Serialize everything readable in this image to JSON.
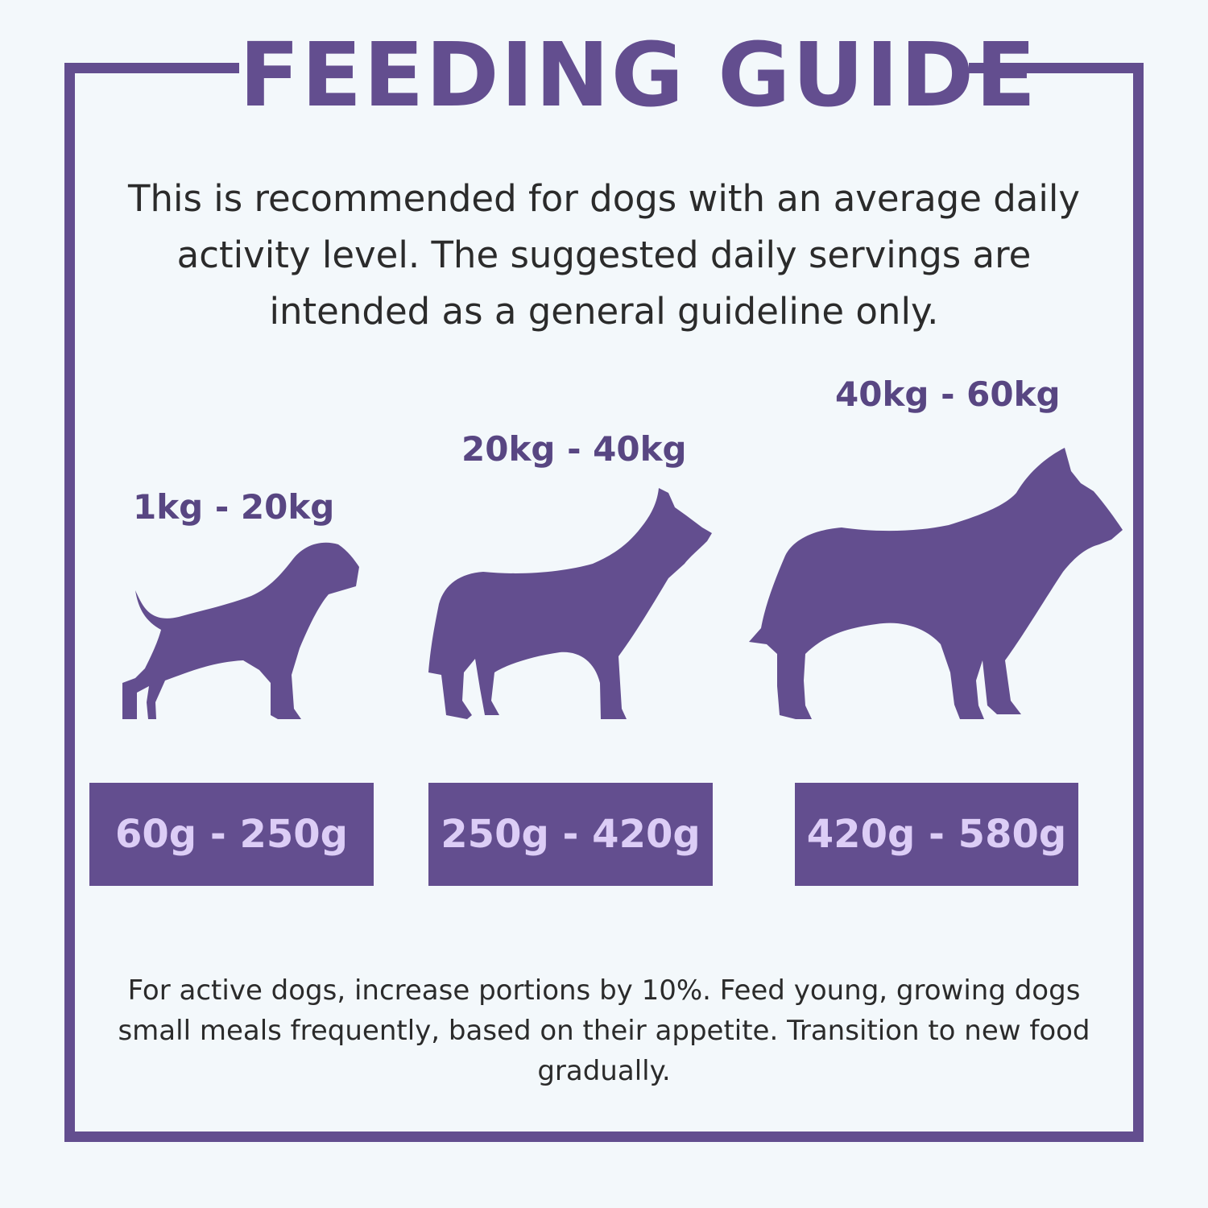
{
  "header": {
    "title": "FEEDING GUIDE"
  },
  "intro_text": "This is recommended for dogs with an average daily activity level. The suggested daily servings are intended as a general guideline only.",
  "sizes": [
    {
      "weight_range": "1kg - 20kg",
      "icon": "small-dog-icon",
      "portion": "60g - 250g"
    },
    {
      "weight_range": "20kg - 40kg",
      "icon": "medium-dog-icon",
      "portion": "250g - 420g"
    },
    {
      "weight_range": "40kg - 60kg",
      "icon": "large-dog-icon",
      "portion": "420g - 580g"
    }
  ],
  "footer_text": "For active dogs, increase portions by 10%. Feed young, growing dogs small meals frequently, based on their appetite. Transition to new food gradually.",
  "colors": {
    "brand": "#634e8f",
    "portion_text": "#dccdf6",
    "background": "#f3f8fb",
    "body_text": "#2b2b2b"
  }
}
